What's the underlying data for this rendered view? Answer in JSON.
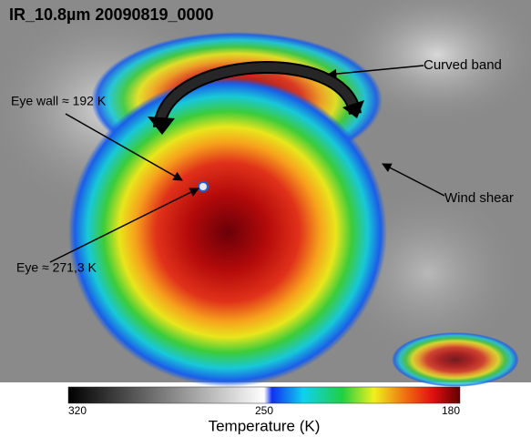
{
  "image": {
    "title": "IR_10.8µm 20090819_0000"
  },
  "annotations": {
    "curved_band": "Curved band",
    "eye_wall": "Eye wall ≈ 192 K",
    "wind_shear": "Wind shear",
    "eye": "Eye ≈ 271,3 K"
  },
  "colorbar": {
    "ticks": [
      320,
      250,
      180
    ],
    "label": "Temperature (K)"
  }
}
